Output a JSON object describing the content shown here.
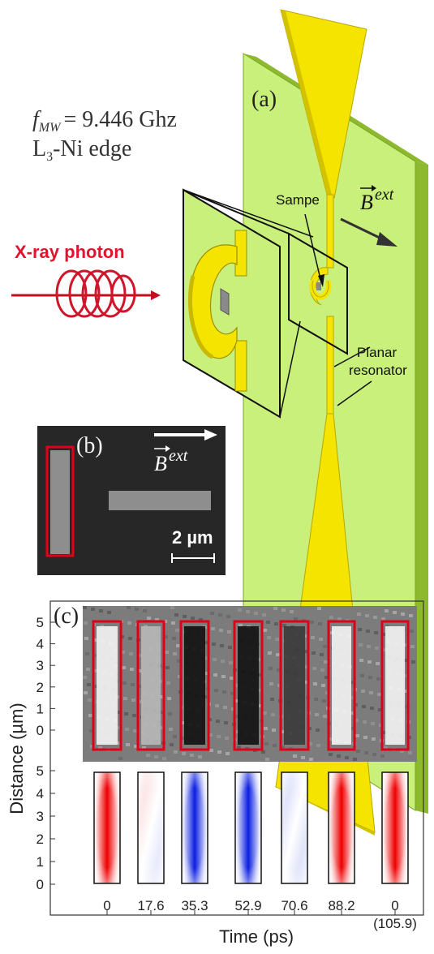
{
  "panel_a": {
    "label": "(a)",
    "freq_symbol": "f",
    "freq_sub": "MW",
    "freq_value": "= 9.446 Ghz",
    "edge_pre": "L",
    "edge_sub": "3",
    "edge_post": "-Ni edge",
    "xray_label": "X-ray photon",
    "sample_label": "Sampe",
    "bext_base": "B",
    "bext_sup": "ext",
    "resonator_line1": "Planar",
    "resonator_line2": "resonator",
    "colors": {
      "board": "#c8f07a",
      "board_edge": "#8db92e",
      "gold": "#f5e400",
      "gold_dark": "#c9b800",
      "xray": "#e0142e"
    }
  },
  "panel_b": {
    "label": "(b)",
    "bext_base": "B",
    "bext_sup": "ext",
    "scale_label": "2 µm"
  },
  "panel_c": {
    "label": "(c)",
    "ylabel": "Distance (µm)",
    "xlabel": "Time (ps)",
    "ytick_labels_top": [
      "5",
      "4",
      "3",
      "2",
      "1",
      "0"
    ],
    "ytick_labels_bottom": [
      "5",
      "4",
      "3",
      "2",
      "1",
      "0"
    ],
    "time_labels": [
      "0",
      "17.6",
      "35.3",
      "52.9",
      "70.6",
      "88.2",
      "0"
    ],
    "time_extra": "(105.9)",
    "xmcd_contrast": [
      "bright",
      "mixed",
      "dark",
      "dark",
      "mixed-dark",
      "bright",
      "bright"
    ],
    "sim_contrast": [
      "red",
      "mixed",
      "blue",
      "blue",
      "mixed-blue",
      "red",
      "red"
    ]
  }
}
